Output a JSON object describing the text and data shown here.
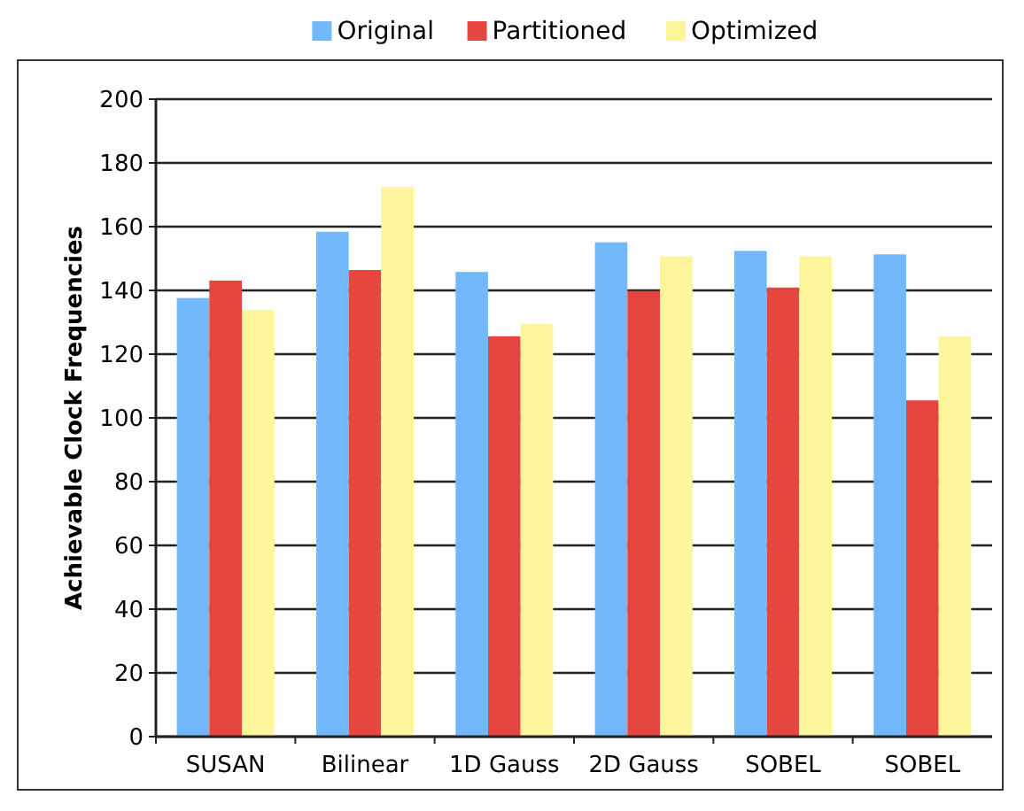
{
  "chart_data": {
    "type": "bar",
    "ylabel": "Achievable Clock Frequencies",
    "categories": [
      "SUSAN",
      "Bilinear",
      "1D Gauss",
      "2D Gauss",
      "SOBEL",
      "SOBEL"
    ],
    "series": [
      {
        "name": "Original",
        "color": "#74b8fc",
        "values": [
          137.6,
          158.4,
          145.8,
          155.1,
          152.4,
          151.3
        ]
      },
      {
        "name": "Partitioned",
        "color": "#e64640",
        "values": [
          143.1,
          146.4,
          125.6,
          139.8,
          140.9,
          105.5
        ]
      },
      {
        "name": "Optimized",
        "color": "#fdf59c",
        "values": [
          133.8,
          172.5,
          129.5,
          150.7,
          150.7,
          125.6
        ]
      }
    ],
    "ylim": [
      0,
      200
    ],
    "yticks": [
      0,
      20,
      40,
      60,
      80,
      100,
      120,
      140,
      160,
      180,
      200
    ],
    "grid": "y",
    "legend": "top"
  }
}
